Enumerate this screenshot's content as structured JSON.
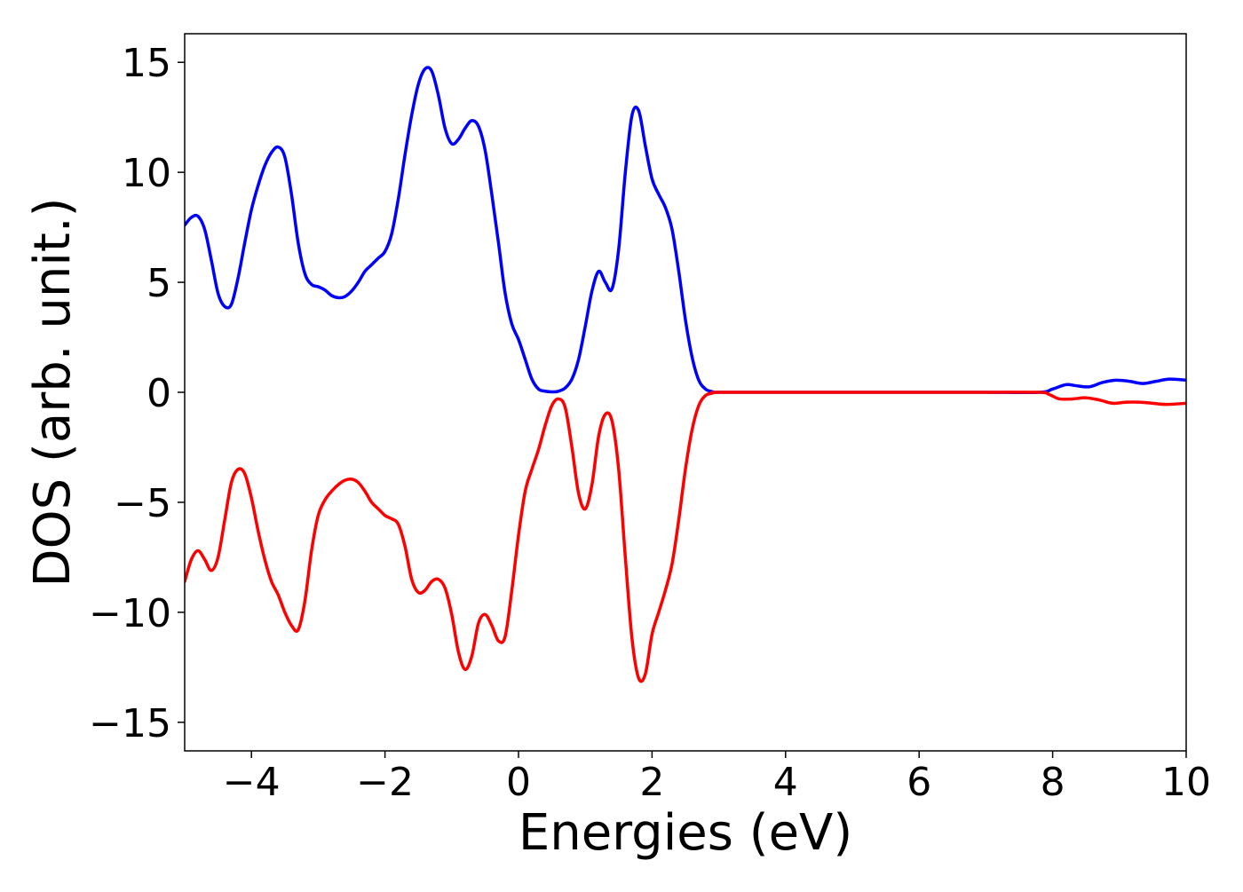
{
  "chart_data": {
    "type": "line",
    "title": "",
    "xlabel": "Energies (eV)",
    "ylabel": "DOS (arb. unit.)",
    "xlim": [
      -5,
      10
    ],
    "ylim": [
      -16.3,
      16.3
    ],
    "grid": false,
    "legend": "none",
    "x_ticks": [
      {
        "value": -4,
        "label": "−4"
      },
      {
        "value": -2,
        "label": "−2"
      },
      {
        "value": 0,
        "label": "0"
      },
      {
        "value": 2,
        "label": "2"
      },
      {
        "value": 4,
        "label": "4"
      },
      {
        "value": 6,
        "label": "6"
      },
      {
        "value": 8,
        "label": "8"
      },
      {
        "value": 10,
        "label": "10"
      }
    ],
    "y_ticks": [
      {
        "value": -15,
        "label": "−15"
      },
      {
        "value": -10,
        "label": "−10"
      },
      {
        "value": -5,
        "label": "−5"
      },
      {
        "value": 0,
        "label": "0"
      },
      {
        "value": 5,
        "label": "5"
      },
      {
        "value": 10,
        "label": "10"
      },
      {
        "value": 15,
        "label": "15"
      }
    ],
    "series": [
      {
        "color": "#0000ff",
        "points": [
          [
            -5.0,
            7.6
          ],
          [
            -4.9,
            7.95
          ],
          [
            -4.8,
            8.0
          ],
          [
            -4.7,
            7.4
          ],
          [
            -4.6,
            6.0
          ],
          [
            -4.5,
            4.5
          ],
          [
            -4.4,
            3.9
          ],
          [
            -4.3,
            4.0
          ],
          [
            -4.2,
            5.2
          ],
          [
            -4.1,
            6.8
          ],
          [
            -4.0,
            8.3
          ],
          [
            -3.9,
            9.4
          ],
          [
            -3.8,
            10.3
          ],
          [
            -3.7,
            10.9
          ],
          [
            -3.6,
            11.15
          ],
          [
            -3.5,
            10.7
          ],
          [
            -3.4,
            9.0
          ],
          [
            -3.3,
            6.8
          ],
          [
            -3.2,
            5.4
          ],
          [
            -3.1,
            4.9
          ],
          [
            -3.0,
            4.8
          ],
          [
            -2.9,
            4.65
          ],
          [
            -2.8,
            4.4
          ],
          [
            -2.7,
            4.3
          ],
          [
            -2.6,
            4.35
          ],
          [
            -2.5,
            4.6
          ],
          [
            -2.4,
            5.0
          ],
          [
            -2.3,
            5.5
          ],
          [
            -2.2,
            5.8
          ],
          [
            -2.1,
            6.1
          ],
          [
            -2.0,
            6.4
          ],
          [
            -1.9,
            7.2
          ],
          [
            -1.8,
            8.8
          ],
          [
            -1.7,
            10.8
          ],
          [
            -1.6,
            12.6
          ],
          [
            -1.5,
            14.0
          ],
          [
            -1.4,
            14.7
          ],
          [
            -1.3,
            14.6
          ],
          [
            -1.2,
            13.5
          ],
          [
            -1.1,
            12.0
          ],
          [
            -1.0,
            11.3
          ],
          [
            -0.9,
            11.5
          ],
          [
            -0.8,
            12.0
          ],
          [
            -0.7,
            12.35
          ],
          [
            -0.6,
            12.1
          ],
          [
            -0.5,
            11.0
          ],
          [
            -0.4,
            9.0
          ],
          [
            -0.3,
            6.8
          ],
          [
            -0.2,
            4.5
          ],
          [
            -0.1,
            3.1
          ],
          [
            0.0,
            2.4
          ],
          [
            0.1,
            1.5
          ],
          [
            0.2,
            0.6
          ],
          [
            0.3,
            0.15
          ],
          [
            0.4,
            0.05
          ],
          [
            0.5,
            0.02
          ],
          [
            0.6,
            0.05
          ],
          [
            0.7,
            0.2
          ],
          [
            0.8,
            0.6
          ],
          [
            0.9,
            1.5
          ],
          [
            1.0,
            3.0
          ],
          [
            1.1,
            4.6
          ],
          [
            1.2,
            5.5
          ],
          [
            1.3,
            5.0
          ],
          [
            1.4,
            4.7
          ],
          [
            1.5,
            6.5
          ],
          [
            1.6,
            10.0
          ],
          [
            1.7,
            12.6
          ],
          [
            1.8,
            12.8
          ],
          [
            1.9,
            11.2
          ],
          [
            2.0,
            9.7
          ],
          [
            2.1,
            9.0
          ],
          [
            2.2,
            8.4
          ],
          [
            2.3,
            7.4
          ],
          [
            2.4,
            5.5
          ],
          [
            2.5,
            3.3
          ],
          [
            2.6,
            1.6
          ],
          [
            2.7,
            0.55
          ],
          [
            2.8,
            0.15
          ],
          [
            2.9,
            0.03
          ],
          [
            3.0,
            0.0
          ],
          [
            4.0,
            0.0
          ],
          [
            5.0,
            0.0
          ],
          [
            6.0,
            0.0
          ],
          [
            7.0,
            0.0
          ],
          [
            7.8,
            0.0
          ],
          [
            8.0,
            0.15
          ],
          [
            8.2,
            0.35
          ],
          [
            8.35,
            0.3
          ],
          [
            8.55,
            0.25
          ],
          [
            8.75,
            0.45
          ],
          [
            8.95,
            0.55
          ],
          [
            9.15,
            0.5
          ],
          [
            9.35,
            0.4
          ],
          [
            9.55,
            0.5
          ],
          [
            9.75,
            0.6
          ],
          [
            10.0,
            0.55
          ]
        ]
      },
      {
        "color": "#ff0000",
        "points": [
          [
            -5.0,
            -8.6
          ],
          [
            -4.9,
            -7.6
          ],
          [
            -4.8,
            -7.2
          ],
          [
            -4.7,
            -7.6
          ],
          [
            -4.6,
            -8.1
          ],
          [
            -4.5,
            -7.5
          ],
          [
            -4.4,
            -5.8
          ],
          [
            -4.3,
            -4.1
          ],
          [
            -4.2,
            -3.5
          ],
          [
            -4.1,
            -3.7
          ],
          [
            -4.0,
            -4.8
          ],
          [
            -3.9,
            -6.3
          ],
          [
            -3.8,
            -7.6
          ],
          [
            -3.7,
            -8.6
          ],
          [
            -3.6,
            -9.2
          ],
          [
            -3.5,
            -10.0
          ],
          [
            -3.4,
            -10.6
          ],
          [
            -3.3,
            -10.8
          ],
          [
            -3.2,
            -9.5
          ],
          [
            -3.1,
            -7.2
          ],
          [
            -3.0,
            -5.6
          ],
          [
            -2.9,
            -4.9
          ],
          [
            -2.8,
            -4.5
          ],
          [
            -2.7,
            -4.2
          ],
          [
            -2.6,
            -4.0
          ],
          [
            -2.5,
            -3.95
          ],
          [
            -2.4,
            -4.1
          ],
          [
            -2.3,
            -4.5
          ],
          [
            -2.2,
            -5.0
          ],
          [
            -2.1,
            -5.3
          ],
          [
            -2.0,
            -5.6
          ],
          [
            -1.9,
            -5.75
          ],
          [
            -1.8,
            -6.0
          ],
          [
            -1.7,
            -7.0
          ],
          [
            -1.6,
            -8.5
          ],
          [
            -1.5,
            -9.1
          ],
          [
            -1.4,
            -9.0
          ],
          [
            -1.3,
            -8.6
          ],
          [
            -1.2,
            -8.5
          ],
          [
            -1.1,
            -8.9
          ],
          [
            -1.0,
            -10.1
          ],
          [
            -0.9,
            -11.8
          ],
          [
            -0.8,
            -12.6
          ],
          [
            -0.7,
            -12.0
          ],
          [
            -0.6,
            -10.5
          ],
          [
            -0.5,
            -10.1
          ],
          [
            -0.4,
            -10.6
          ],
          [
            -0.3,
            -11.3
          ],
          [
            -0.2,
            -11.1
          ],
          [
            -0.1,
            -9.0
          ],
          [
            0.0,
            -6.5
          ],
          [
            0.1,
            -4.5
          ],
          [
            0.2,
            -3.5
          ],
          [
            0.3,
            -2.6
          ],
          [
            0.4,
            -1.5
          ],
          [
            0.5,
            -0.6
          ],
          [
            0.6,
            -0.3
          ],
          [
            0.7,
            -0.7
          ],
          [
            0.8,
            -2.5
          ],
          [
            0.9,
            -4.6
          ],
          [
            1.0,
            -5.3
          ],
          [
            1.1,
            -4.2
          ],
          [
            1.2,
            -2.0
          ],
          [
            1.3,
            -1.0
          ],
          [
            1.4,
            -1.3
          ],
          [
            1.5,
            -3.5
          ],
          [
            1.6,
            -7.5
          ],
          [
            1.7,
            -11.2
          ],
          [
            1.8,
            -13.0
          ],
          [
            1.9,
            -12.8
          ],
          [
            2.0,
            -11.0
          ],
          [
            2.1,
            -10.0
          ],
          [
            2.2,
            -9.0
          ],
          [
            2.3,
            -7.8
          ],
          [
            2.4,
            -5.8
          ],
          [
            2.5,
            -3.5
          ],
          [
            2.6,
            -1.7
          ],
          [
            2.7,
            -0.6
          ],
          [
            2.8,
            -0.15
          ],
          [
            2.9,
            -0.04
          ],
          [
            3.0,
            0.0
          ],
          [
            4.0,
            0.0
          ],
          [
            5.0,
            0.0
          ],
          [
            6.0,
            0.0
          ],
          [
            7.0,
            0.0
          ],
          [
            7.8,
            0.0
          ],
          [
            7.95,
            -0.1
          ],
          [
            8.1,
            -0.3
          ],
          [
            8.3,
            -0.3
          ],
          [
            8.5,
            -0.25
          ],
          [
            8.7,
            -0.35
          ],
          [
            8.9,
            -0.5
          ],
          [
            9.1,
            -0.45
          ],
          [
            9.3,
            -0.45
          ],
          [
            9.5,
            -0.5
          ],
          [
            9.7,
            -0.55
          ],
          [
            10.0,
            -0.5
          ]
        ]
      }
    ]
  }
}
